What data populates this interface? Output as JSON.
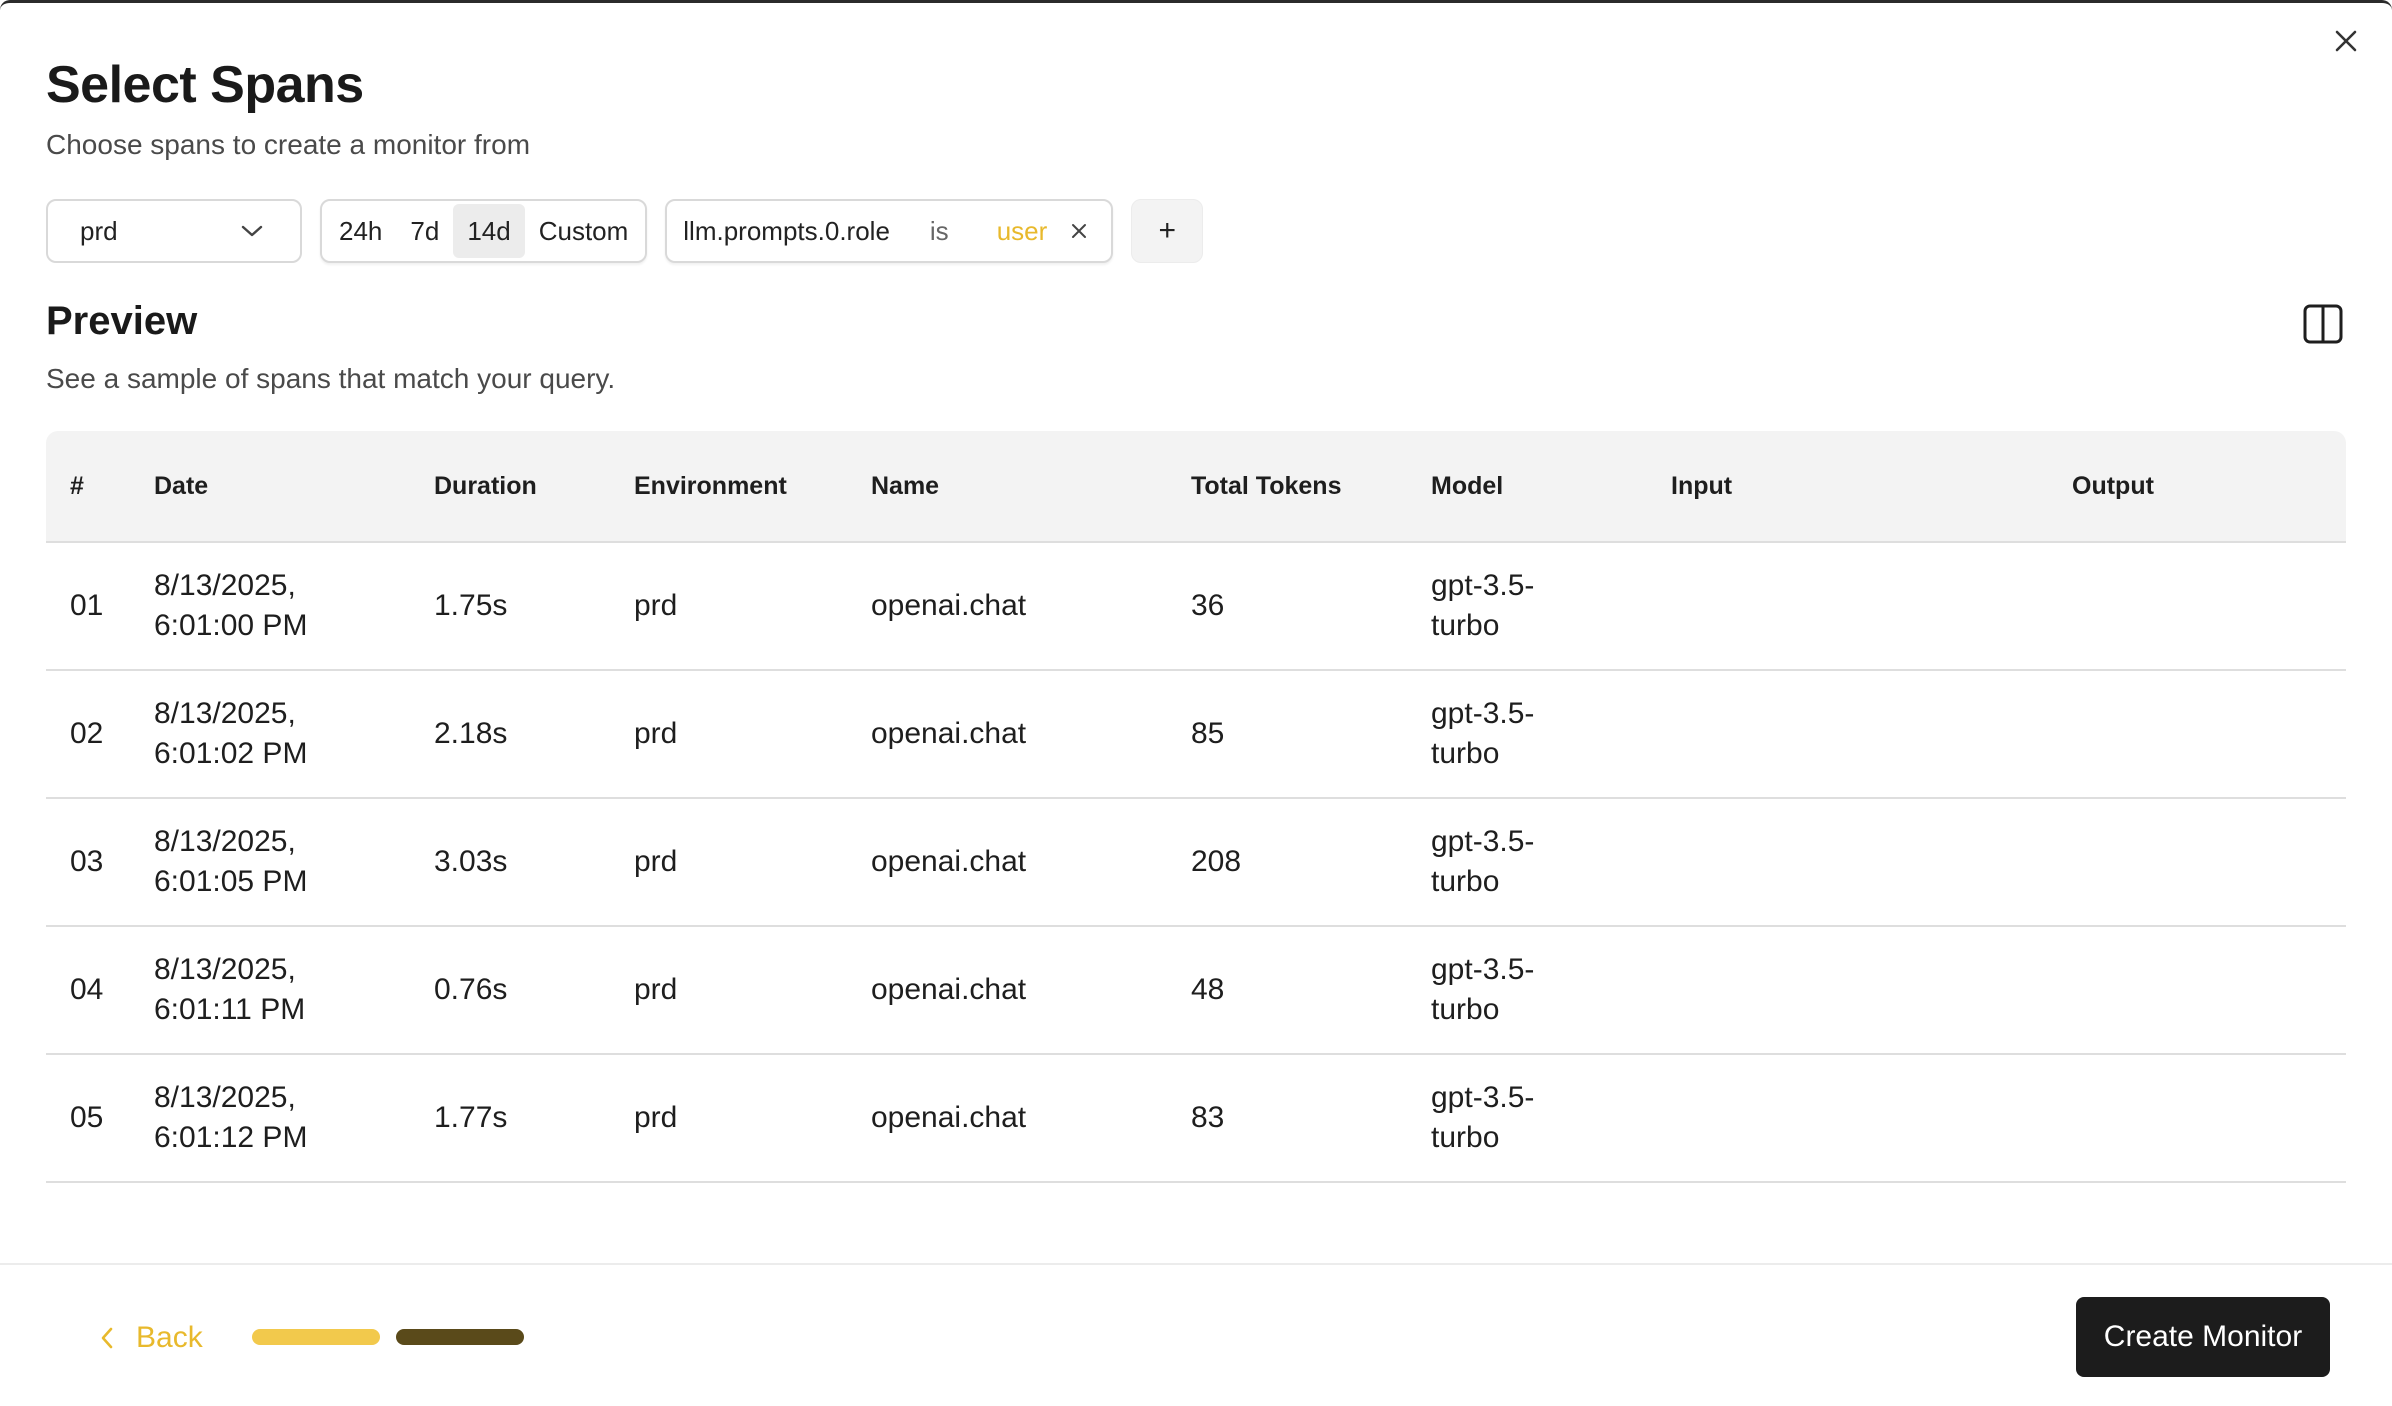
{
  "modal": {
    "title": "Select Spans",
    "subtitle": "Choose spans to create a monitor from",
    "close_icon": "close-icon"
  },
  "filters": {
    "environment": {
      "value": "prd",
      "icon": "chevron-down-icon"
    },
    "time_range": {
      "options": [
        "24h",
        "7d",
        "14d",
        "Custom"
      ],
      "selected": "14d"
    },
    "chip": {
      "field": "llm.prompts.0.role",
      "operator": "is",
      "value": "user",
      "remove_icon": "close-icon"
    },
    "add_label": "+"
  },
  "preview": {
    "title": "Preview",
    "subtitle": "See a sample of spans that match your query.",
    "layout_icon": "split-columns-icon"
  },
  "table": {
    "headers": {
      "num": "#",
      "date": "Date",
      "duration": "Duration",
      "environment": "Environment",
      "name": "Name",
      "total_tokens": "Total Tokens",
      "model": "Model",
      "input": "Input",
      "output": "Output"
    },
    "rows": [
      {
        "num": "01",
        "date_line1": "8/13/2025,",
        "date_line2": "6:01:00 PM",
        "duration": "1.75s",
        "environment": "prd",
        "name": "openai.chat",
        "total_tokens": "36",
        "model_line1": "gpt-3.5-",
        "model_line2": "turbo",
        "input": "",
        "output": ""
      },
      {
        "num": "02",
        "date_line1": "8/13/2025,",
        "date_line2": "6:01:02 PM",
        "duration": "2.18s",
        "environment": "prd",
        "name": "openai.chat",
        "total_tokens": "85",
        "model_line1": "gpt-3.5-",
        "model_line2": "turbo",
        "input": "",
        "output": ""
      },
      {
        "num": "03",
        "date_line1": "8/13/2025,",
        "date_line2": "6:01:05 PM",
        "duration": "3.03s",
        "environment": "prd",
        "name": "openai.chat",
        "total_tokens": "208",
        "model_line1": "gpt-3.5-",
        "model_line2": "turbo",
        "input": "",
        "output": ""
      },
      {
        "num": "04",
        "date_line1": "8/13/2025,",
        "date_line2": "6:01:11 PM",
        "duration": "0.76s",
        "environment": "prd",
        "name": "openai.chat",
        "total_tokens": "48",
        "model_line1": "gpt-3.5-",
        "model_line2": "turbo",
        "input": "",
        "output": ""
      },
      {
        "num": "05",
        "date_line1": "8/13/2025,",
        "date_line2": "6:01:12 PM",
        "duration": "1.77s",
        "environment": "prd",
        "name": "openai.chat",
        "total_tokens": "83",
        "model_line1": "gpt-3.5-",
        "model_line2": "turbo",
        "input": "",
        "output": ""
      }
    ]
  },
  "footer": {
    "back_label": "Back",
    "back_icon": "chevron-left-icon",
    "steps": [
      {
        "color": "#f2c94c",
        "state": "done"
      },
      {
        "color": "#5a4a1a",
        "state": "current"
      }
    ],
    "step_current": 2,
    "step_total": 2,
    "create_label": "Create Monitor"
  },
  "colors": {
    "accent": "#e8b92c",
    "primary_button": "#1c1c1c",
    "header_bg": "#f3f3f3"
  }
}
